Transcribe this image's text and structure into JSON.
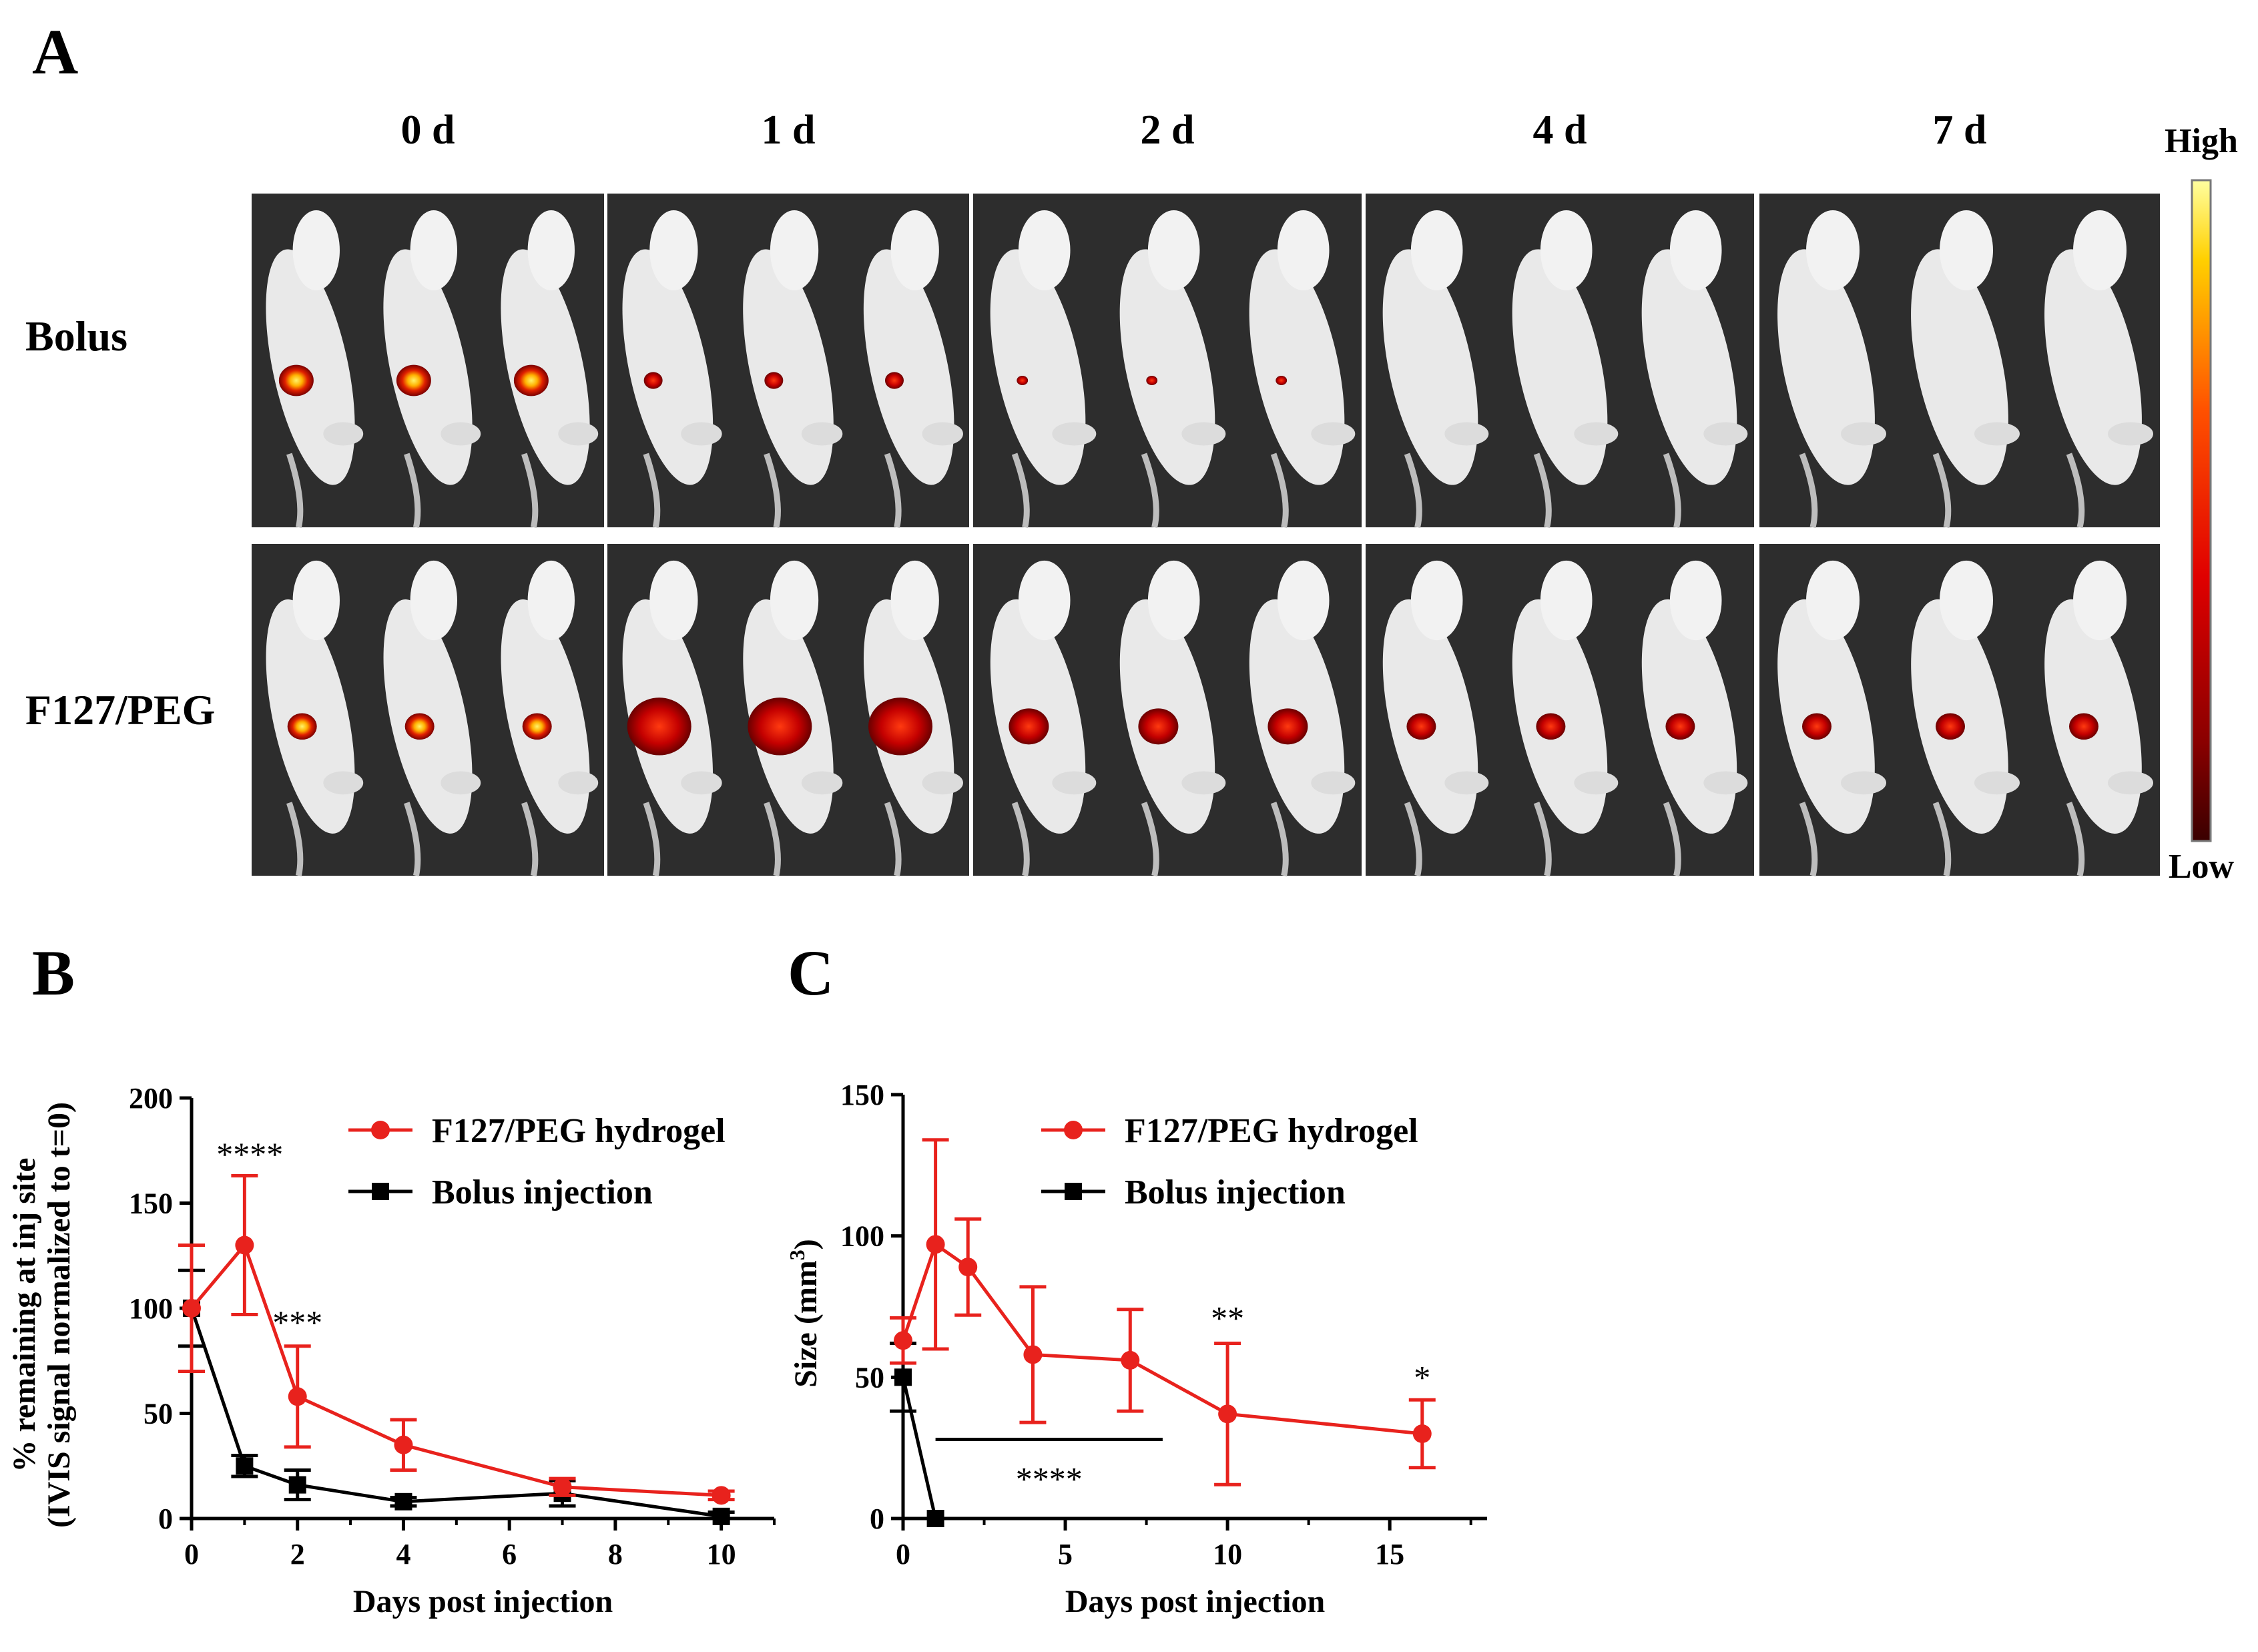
{
  "panelA": {
    "letter": "A",
    "columns": [
      "0 d",
      "1 d",
      "2 d",
      "4 d",
      "7 d"
    ],
    "rows": [
      "Bolus",
      "F127/PEG"
    ],
    "colorbar": {
      "high": "High",
      "low": "Low"
    },
    "signal_intensity": [
      [
        1.0,
        0.45,
        0.02,
        0.0,
        0.0
      ],
      [
        0.95,
        0.9,
        0.7,
        0.45,
        0.4
      ]
    ]
  },
  "chart_data": [
    {
      "panel": "B",
      "type": "line",
      "xlabel": "Days post injection",
      "ylabel_line1": "% remaining at inj site",
      "ylabel_line2": "(IVIS signal normalized to t=0)",
      "xlim": [
        0,
        11
      ],
      "ylim": [
        0,
        200
      ],
      "xticks": [
        0,
        2,
        4,
        6,
        8,
        10
      ],
      "yticks": [
        0,
        50,
        100,
        150,
        200
      ],
      "legend_position": "top-right",
      "series": [
        {
          "name": "F127/PEG hydrogel",
          "color": "#e8221d",
          "marker": "circle",
          "x": [
            0,
            1,
            2,
            4,
            7,
            10
          ],
          "y": [
            100,
            130,
            58,
            35,
            15,
            11
          ],
          "err": [
            30,
            33,
            24,
            12,
            4,
            2
          ]
        },
        {
          "name": "Bolus injection",
          "color": "#000000",
          "marker": "square",
          "x": [
            0,
            1,
            2,
            4,
            7,
            10
          ],
          "y": [
            100,
            25,
            16,
            8,
            12,
            1
          ],
          "err": [
            18,
            5,
            7,
            2,
            6,
            2
          ]
        }
      ],
      "annotations": [
        {
          "text": "****",
          "x": 1.1,
          "y": 168
        },
        {
          "text": "***",
          "x": 2.0,
          "y": 88
        }
      ]
    },
    {
      "panel": "C",
      "type": "line",
      "xlabel": "Days post injection",
      "ylabel": "Size (mm",
      "ylabel_sup": "3",
      "ylabel_end": ")",
      "xlim": [
        0,
        18
      ],
      "ylim": [
        0,
        150
      ],
      "xticks": [
        0,
        5,
        10,
        15
      ],
      "yticks": [
        0,
        50,
        100,
        150
      ],
      "legend_position": "top-right",
      "series": [
        {
          "name": "F127/PEG hydrogel",
          "color": "#e8221d",
          "marker": "circle",
          "x": [
            0,
            1,
            2,
            4,
            7,
            10,
            16
          ],
          "y": [
            63,
            97,
            89,
            58,
            56,
            37,
            30
          ],
          "err": [
            8,
            37,
            17,
            24,
            18,
            25,
            12
          ]
        },
        {
          "name": "Bolus injection",
          "color": "#000000",
          "marker": "square",
          "x": [
            0,
            1
          ],
          "y": [
            50,
            0
          ],
          "err": [
            12,
            0
          ]
        }
      ],
      "bracket": {
        "x1": 1,
        "x2": 8,
        "y": 28
      },
      "annotations": [
        {
          "text": "****",
          "x": 4.5,
          "y": 10
        },
        {
          "text": "**",
          "x": 10,
          "y": 67
        },
        {
          "text": "*",
          "x": 16,
          "y": 46
        }
      ]
    }
  ]
}
